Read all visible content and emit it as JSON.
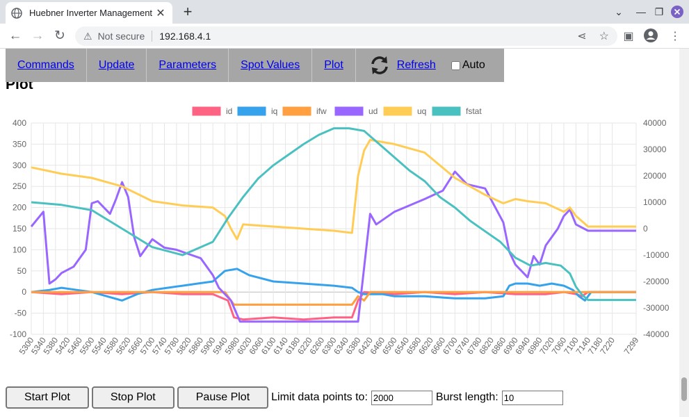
{
  "browser": {
    "tab_title": "Huebner Inverter Management",
    "url_warning": "Not secure",
    "url": "192.168.4.1"
  },
  "menu": {
    "items": [
      "Commands",
      "Update",
      "Parameters",
      "Spot Values",
      "Plot"
    ],
    "refresh_label": "Refresh",
    "auto_label": "Auto"
  },
  "page": {
    "heading": "Plot"
  },
  "controls": {
    "start_label": "Start Plot",
    "stop_label": "Stop Plot",
    "pause_label": "Pause Plot",
    "limit_label": "Limit data points to:",
    "limit_value": "2000",
    "burst_label": "Burst length:",
    "burst_value": "10"
  },
  "chart_data": {
    "type": "line",
    "legend_position": "top",
    "grid": true,
    "xlim": [
      5300,
      7299
    ],
    "x_ticks": [
      "5300",
      "5340",
      "5380",
      "5420",
      "5460",
      "5500",
      "5540",
      "5580",
      "5620",
      "5660",
      "5700",
      "5740",
      "5780",
      "5820",
      "5860",
      "5900",
      "5940",
      "5980",
      "6020",
      "6060",
      "6100",
      "6140",
      "6180",
      "6220",
      "6260",
      "6300",
      "6340",
      "6380",
      "6420",
      "6460",
      "6500",
      "6540",
      "6580",
      "6620",
      "6660",
      "6700",
      "6740",
      "6780",
      "6820",
      "6860",
      "6900",
      "6940",
      "6980",
      "7020",
      "7060",
      "7100",
      "7140",
      "7180",
      "7220",
      "7299"
    ],
    "y_left": {
      "range": [
        -100,
        400
      ],
      "ticks": [
        "400",
        "350",
        "300",
        "250",
        "200",
        "150",
        "100",
        "50",
        "0",
        "-50",
        "-100"
      ]
    },
    "y_right": {
      "range": [
        -40000,
        40000
      ],
      "ticks": [
        "40000",
        "30000",
        "20000",
        "10000",
        "0",
        "-10000",
        "-20000",
        "-30000",
        "-40000"
      ]
    },
    "series": [
      {
        "name": "id",
        "color": "#ff6384",
        "axis": "left",
        "x": [
          5300,
          5400,
          5500,
          5600,
          5700,
          5800,
          5900,
          5950,
          5970,
          6000,
          6100,
          6200,
          6300,
          6360,
          6380,
          6400,
          6500,
          6600,
          6700,
          6800,
          6900,
          7000,
          7060,
          7100,
          7120,
          7140,
          7160,
          7299
        ],
        "y": [
          0,
          -5,
          0,
          -5,
          0,
          -5,
          -5,
          -20,
          -60,
          -65,
          -60,
          -65,
          -60,
          -60,
          -20,
          0,
          -5,
          0,
          -5,
          0,
          -5,
          -5,
          0,
          -5,
          -10,
          0,
          0,
          0
        ]
      },
      {
        "name": "iq",
        "color": "#36a2eb",
        "axis": "left",
        "x": [
          5300,
          5360,
          5400,
          5450,
          5500,
          5550,
          5600,
          5650,
          5700,
          5750,
          5800,
          5850,
          5900,
          5940,
          5980,
          6020,
          6100,
          6200,
          6300,
          6360,
          6380,
          6400,
          6460,
          6500,
          6600,
          6700,
          6800,
          6860,
          6880,
          6900,
          6940,
          6980,
          7020,
          7060,
          7090,
          7110,
          7130,
          7150,
          7299
        ],
        "y": [
          0,
          5,
          10,
          5,
          0,
          -10,
          -20,
          -5,
          5,
          10,
          15,
          20,
          25,
          50,
          55,
          40,
          25,
          20,
          15,
          10,
          0,
          -5,
          -5,
          -10,
          -10,
          -15,
          -15,
          -10,
          15,
          20,
          20,
          15,
          20,
          15,
          5,
          -10,
          -20,
          0,
          0
        ]
      },
      {
        "name": "ifw",
        "color": "#ff9f40",
        "axis": "left",
        "x": [
          5300,
          5940,
          5960,
          5970,
          6000,
          6360,
          6380,
          6400,
          6420,
          7299
        ],
        "y": [
          0,
          0,
          -20,
          -30,
          -30,
          -30,
          -10,
          -20,
          0,
          0
        ]
      },
      {
        "name": "ud",
        "color": "#9966ff",
        "axis": "left",
        "x": [
          5300,
          5340,
          5360,
          5380,
          5400,
          5440,
          5480,
          5500,
          5520,
          5560,
          5580,
          5600,
          5620,
          5640,
          5660,
          5700,
          5740,
          5780,
          5820,
          5860,
          5880,
          5900,
          5920,
          5960,
          5990,
          6000,
          6360,
          6380,
          6420,
          6440,
          6460,
          6500,
          6600,
          6660,
          6700,
          6740,
          6800,
          6860,
          6880,
          6900,
          6940,
          6960,
          6980,
          7000,
          7040,
          7060,
          7080,
          7100,
          7140,
          7160,
          7299
        ],
        "y": [
          155,
          190,
          20,
          30,
          45,
          60,
          100,
          210,
          215,
          185,
          220,
          260,
          225,
          130,
          85,
          125,
          105,
          100,
          90,
          80,
          60,
          40,
          10,
          -20,
          -70,
          -70,
          -70,
          -70,
          185,
          160,
          170,
          190,
          220,
          240,
          285,
          255,
          245,
          165,
          95,
          65,
          35,
          85,
          65,
          110,
          150,
          180,
          195,
          160,
          145,
          145,
          145
        ]
      },
      {
        "name": "uq",
        "color": "#ffcd56",
        "axis": "left",
        "x": [
          5300,
          5400,
          5500,
          5600,
          5700,
          5800,
          5900,
          5940,
          5960,
          5980,
          6000,
          6100,
          6200,
          6300,
          6360,
          6380,
          6400,
          6420,
          6500,
          6600,
          6700,
          6800,
          6860,
          6900,
          6940,
          7000,
          7060,
          7080,
          7100,
          7140,
          7180,
          7299
        ],
        "y": [
          295,
          280,
          270,
          250,
          215,
          205,
          200,
          180,
          150,
          125,
          160,
          155,
          150,
          145,
          140,
          275,
          335,
          360,
          350,
          330,
          270,
          230,
          210,
          220,
          215,
          210,
          190,
          200,
          180,
          155,
          155,
          155
        ]
      },
      {
        "name": "fstat",
        "color": "#4bc0c0",
        "axis": "right",
        "x": [
          5300,
          5400,
          5500,
          5600,
          5700,
          5800,
          5900,
          5950,
          6000,
          6050,
          6100,
          6150,
          6200,
          6250,
          6300,
          6350,
          6400,
          6450,
          6500,
          6550,
          6600,
          6650,
          6700,
          6750,
          6800,
          6850,
          6900,
          6950,
          7000,
          7050,
          7080,
          7100,
          7120,
          7140,
          7160,
          7299
        ],
        "y": [
          10000,
          9000,
          7000,
          0,
          -7000,
          -10000,
          -5000,
          4000,
          12000,
          19000,
          24000,
          28000,
          32000,
          35500,
          38000,
          38000,
          37000,
          32000,
          27000,
          22000,
          18000,
          12000,
          8000,
          3000,
          -1000,
          -5000,
          -11000,
          -14000,
          -13000,
          -14000,
          -17000,
          -22000,
          -25000,
          -27000,
          -27000,
          -27000
        ]
      }
    ]
  }
}
